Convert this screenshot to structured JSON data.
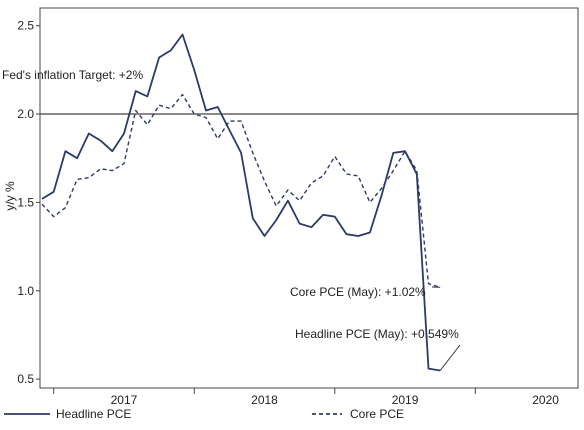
{
  "chart_data": {
    "type": "line",
    "title": "",
    "xlabel": "",
    "ylabel": "y/y %",
    "ylim": [
      0.45,
      2.6
    ],
    "y_ticks": [
      "0.5",
      "1.0",
      "1.5",
      "2.0",
      "2.5"
    ],
    "x_ticks": [
      "2017",
      "2018",
      "2019",
      "2020"
    ],
    "x_range": [
      "2016-12",
      "2020-09"
    ],
    "grid": false,
    "reference_line": {
      "value": 2.0,
      "label": "Fed's inflation Target: +2%"
    },
    "series": [
      {
        "name": "Headline PCE",
        "style": "solid",
        "color": "#2b3a67",
        "points": [
          [
            "2016-12",
            1.52
          ],
          [
            "2017-01",
            1.56
          ],
          [
            "2017-02",
            1.79
          ],
          [
            "2017-03",
            1.75
          ],
          [
            "2017-04",
            1.89
          ],
          [
            "2017-05",
            1.85
          ],
          [
            "2017-06",
            1.79
          ],
          [
            "2017-07",
            1.89
          ],
          [
            "2017-08",
            2.13
          ],
          [
            "2017-09",
            2.1
          ],
          [
            "2017-10",
            2.32
          ],
          [
            "2017-11",
            2.36
          ],
          [
            "2017-12",
            2.45
          ],
          [
            "2018-01",
            2.25
          ],
          [
            "2018-02",
            2.02
          ],
          [
            "2018-03",
            2.04
          ],
          [
            "2018-04",
            1.91
          ],
          [
            "2018-05",
            1.78
          ],
          [
            "2018-06",
            1.41
          ],
          [
            "2018-07",
            1.31
          ],
          [
            "2018-08",
            1.4
          ],
          [
            "2018-09",
            1.51
          ],
          [
            "2018-10",
            1.38
          ],
          [
            "2018-11",
            1.36
          ],
          [
            "2018-12",
            1.43
          ],
          [
            "2019-01",
            1.42
          ],
          [
            "2019-02",
            1.32
          ],
          [
            "2019-03",
            1.31
          ],
          [
            "2019-04",
            1.33
          ],
          [
            "2019-05",
            1.54
          ],
          [
            "2019-06",
            1.78
          ],
          [
            "2019-07",
            1.79
          ],
          [
            "2019-08",
            1.66
          ],
          [
            "2019-09",
            0.56
          ],
          [
            "2019-10",
            0.549
          ]
        ]
      },
      {
        "name": "Core PCE",
        "style": "dashed",
        "color": "#2b3a67",
        "points": [
          [
            "2016-12",
            1.49
          ],
          [
            "2017-01",
            1.42
          ],
          [
            "2017-02",
            1.47
          ],
          [
            "2017-03",
            1.63
          ],
          [
            "2017-04",
            1.64
          ],
          [
            "2017-05",
            1.69
          ],
          [
            "2017-06",
            1.68
          ],
          [
            "2017-07",
            1.72
          ],
          [
            "2017-08",
            2.02
          ],
          [
            "2017-09",
            1.94
          ],
          [
            "2017-10",
            2.05
          ],
          [
            "2017-11",
            2.03
          ],
          [
            "2017-12",
            2.11
          ],
          [
            "2018-01",
            2.0
          ],
          [
            "2018-02",
            1.98
          ],
          [
            "2018-03",
            1.86
          ],
          [
            "2018-04",
            1.96
          ],
          [
            "2018-05",
            1.96
          ],
          [
            "2018-06",
            1.78
          ],
          [
            "2018-07",
            1.62
          ],
          [
            "2018-08",
            1.48
          ],
          [
            "2018-09",
            1.57
          ],
          [
            "2018-10",
            1.51
          ],
          [
            "2018-11",
            1.61
          ],
          [
            "2018-12",
            1.65
          ],
          [
            "2019-01",
            1.76
          ],
          [
            "2019-02",
            1.66
          ],
          [
            "2019-03",
            1.65
          ],
          [
            "2019-04",
            1.5
          ],
          [
            "2019-05",
            1.58
          ],
          [
            "2019-06",
            1.68
          ],
          [
            "2019-07",
            1.79
          ],
          [
            "2019-08",
            1.68
          ],
          [
            "2019-09",
            1.04
          ],
          [
            "2019-10",
            1.02
          ]
        ]
      }
    ],
    "annotations": [
      {
        "text": "Core PCE (May): +1.02%",
        "series": "Core PCE",
        "value": 1.02
      },
      {
        "text": "Headline PCE (May): +0.549%",
        "series": "Headline PCE",
        "value": 0.549
      }
    ],
    "legend": {
      "position": "bottom",
      "entries": [
        {
          "label": "Headline PCE",
          "style": "solid"
        },
        {
          "label": "Core PCE",
          "style": "dashed"
        }
      ]
    },
    "colors": {
      "series": "#2b3a67",
      "reference": "#8a8a8a",
      "axis": "#444444"
    }
  }
}
